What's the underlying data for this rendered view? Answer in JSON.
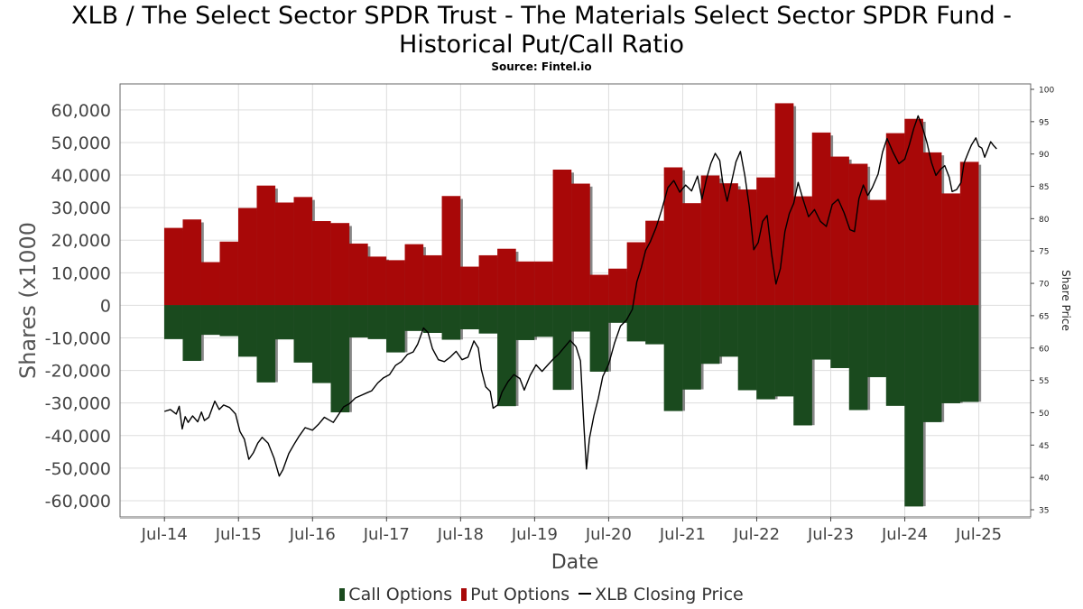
{
  "chart_data": {
    "type": "bar",
    "title_line1": "XLB / The Select Sector SPDR Trust - The Materials Select Sector SPDR Fund -",
    "title_line2": "Historical Put/Call Ratio",
    "subtitle": "Source: Fintel.io",
    "xlabel": "Date",
    "ylabel": "Shares (x1000",
    "y2label": "Share Price",
    "ylim": [
      -65000,
      68000
    ],
    "y2lim": [
      35,
      100
    ],
    "yticks": [
      "60,000",
      "50,000",
      "40,000",
      "30,000",
      "20,000",
      "10,000",
      "0",
      "-10,000",
      "-20,000",
      "-30,000",
      "-40,000",
      "-50,000",
      "-60,000"
    ],
    "ytick_values": [
      60000,
      50000,
      40000,
      30000,
      20000,
      10000,
      0,
      -10000,
      -20000,
      -30000,
      -40000,
      -50000,
      -60000
    ],
    "y2ticks": [
      "100",
      "95",
      "90",
      "85",
      "80",
      "75",
      "70",
      "65",
      "60",
      "55",
      "50",
      "45",
      "40",
      "35"
    ],
    "y2tick_values": [
      100,
      95,
      90,
      85,
      80,
      75,
      70,
      65,
      60,
      55,
      50,
      45,
      40,
      35
    ],
    "xticks": [
      "Jul-14",
      "Jul-15",
      "Jul-16",
      "Jul-17",
      "Jul-18",
      "Jul-19",
      "Jul-20",
      "Jul-21",
      "Jul-22",
      "Jul-23",
      "Jul-24",
      "Jul-25"
    ],
    "xtick_values": [
      2014.5,
      2015.5,
      2016.5,
      2017.5,
      2018.5,
      2019.5,
      2020.5,
      2021.5,
      2022.5,
      2023.5,
      2024.5,
      2025.5
    ],
    "xlim": [
      2013.9,
      2026.2
    ],
    "grid": true,
    "legend_position": "bottom",
    "bar_width_years": 0.245,
    "series": [
      {
        "name": "Call Options",
        "color": "#1a4a1e",
        "points": [
          [
            2014.5,
            -10300
          ],
          [
            2014.75,
            -17000
          ],
          [
            2015.0,
            -9000
          ],
          [
            2015.25,
            -9400
          ],
          [
            2015.5,
            -15700
          ],
          [
            2015.75,
            -23600
          ],
          [
            2016.0,
            -10400
          ],
          [
            2016.25,
            -17500
          ],
          [
            2016.5,
            -23800
          ],
          [
            2016.75,
            -32800
          ],
          [
            2017.0,
            -9800
          ],
          [
            2017.25,
            -10300
          ],
          [
            2017.5,
            -14400
          ],
          [
            2017.75,
            -7800
          ],
          [
            2018.0,
            -8400
          ],
          [
            2018.25,
            -10500
          ],
          [
            2018.5,
            -7300
          ],
          [
            2018.75,
            -8600
          ],
          [
            2019.0,
            -30900
          ],
          [
            2019.25,
            -10600
          ],
          [
            2019.5,
            -9600
          ],
          [
            2019.75,
            -25900
          ],
          [
            2020.0,
            -8000
          ],
          [
            2020.25,
            -20300
          ],
          [
            2020.5,
            -5300
          ],
          [
            2020.75,
            -11000
          ],
          [
            2021.0,
            -11900
          ],
          [
            2021.25,
            -32400
          ],
          [
            2021.5,
            -25800
          ],
          [
            2021.75,
            -17900
          ],
          [
            2022.0,
            -15700
          ],
          [
            2022.25,
            -26000
          ],
          [
            2022.5,
            -28800
          ],
          [
            2022.75,
            -27900
          ],
          [
            2023.0,
            -36800
          ],
          [
            2023.25,
            -16600
          ],
          [
            2023.5,
            -19200
          ],
          [
            2023.75,
            -32100
          ],
          [
            2024.0,
            -22000
          ],
          [
            2024.25,
            -30800
          ],
          [
            2024.5,
            -61700
          ],
          [
            2024.75,
            -35800
          ],
          [
            2025.0,
            -30000
          ],
          [
            2025.25,
            -29600
          ]
        ]
      },
      {
        "name": "Put Options",
        "color": "#a80808",
        "points": [
          [
            2014.5,
            23700
          ],
          [
            2014.75,
            26300
          ],
          [
            2015.0,
            13200
          ],
          [
            2015.25,
            19500
          ],
          [
            2015.5,
            29800
          ],
          [
            2015.75,
            36700
          ],
          [
            2016.0,
            31500
          ],
          [
            2016.25,
            33200
          ],
          [
            2016.5,
            25800
          ],
          [
            2016.75,
            25200
          ],
          [
            2017.0,
            18900
          ],
          [
            2017.25,
            14900
          ],
          [
            2017.5,
            13800
          ],
          [
            2017.75,
            18700
          ],
          [
            2018.0,
            15300
          ],
          [
            2018.25,
            33500
          ],
          [
            2018.5,
            11800
          ],
          [
            2018.75,
            15300
          ],
          [
            2019.0,
            17300
          ],
          [
            2019.25,
            13400
          ],
          [
            2019.5,
            13400
          ],
          [
            2019.75,
            41600
          ],
          [
            2020.0,
            37300
          ],
          [
            2020.25,
            9300
          ],
          [
            2020.5,
            11200
          ],
          [
            2020.75,
            19300
          ],
          [
            2021.0,
            25900
          ],
          [
            2021.25,
            42300
          ],
          [
            2021.5,
            31300
          ],
          [
            2021.75,
            39800
          ],
          [
            2022.0,
            37400
          ],
          [
            2022.25,
            35500
          ],
          [
            2022.5,
            39200
          ],
          [
            2022.75,
            62000
          ],
          [
            2023.0,
            33400
          ],
          [
            2023.25,
            53000
          ],
          [
            2023.5,
            45600
          ],
          [
            2023.75,
            43400
          ],
          [
            2024.0,
            32300
          ],
          [
            2024.25,
            52800
          ],
          [
            2024.5,
            57200
          ],
          [
            2024.75,
            46900
          ],
          [
            2025.0,
            34300
          ],
          [
            2025.25,
            44000
          ]
        ]
      },
      {
        "name": "XLB Closing Price",
        "color": "#000000",
        "type": "line",
        "axis": "right",
        "points": [
          [
            2014.5,
            50.2
          ],
          [
            2014.58,
            50.5
          ],
          [
            2014.66,
            49.8
          ],
          [
            2014.7,
            51.0
          ],
          [
            2014.74,
            47.5
          ],
          [
            2014.78,
            49.4
          ],
          [
            2014.82,
            48.5
          ],
          [
            2014.88,
            49.5
          ],
          [
            2014.95,
            48.6
          ],
          [
            2015.0,
            50.1
          ],
          [
            2015.04,
            48.8
          ],
          [
            2015.1,
            49.3
          ],
          [
            2015.18,
            51.8
          ],
          [
            2015.24,
            50.5
          ],
          [
            2015.3,
            51.2
          ],
          [
            2015.38,
            50.8
          ],
          [
            2015.46,
            49.8
          ],
          [
            2015.52,
            47.1
          ],
          [
            2015.58,
            45.9
          ],
          [
            2015.64,
            42.8
          ],
          [
            2015.7,
            43.8
          ],
          [
            2015.76,
            45.3
          ],
          [
            2015.82,
            46.2
          ],
          [
            2015.9,
            45.3
          ],
          [
            2015.98,
            43.0
          ],
          [
            2016.05,
            40.2
          ],
          [
            2016.1,
            41.2
          ],
          [
            2016.18,
            43.7
          ],
          [
            2016.26,
            45.3
          ],
          [
            2016.32,
            46.4
          ],
          [
            2016.4,
            47.7
          ],
          [
            2016.5,
            47.3
          ],
          [
            2016.58,
            48.2
          ],
          [
            2016.66,
            49.3
          ],
          [
            2016.72,
            48.9
          ],
          [
            2016.78,
            48.5
          ],
          [
            2016.85,
            49.7
          ],
          [
            2016.92,
            50.9
          ],
          [
            2017.0,
            51.4
          ],
          [
            2017.08,
            52.3
          ],
          [
            2017.16,
            52.7
          ],
          [
            2017.24,
            53.1
          ],
          [
            2017.3,
            53.4
          ],
          [
            2017.38,
            54.6
          ],
          [
            2017.46,
            55.4
          ],
          [
            2017.54,
            55.9
          ],
          [
            2017.62,
            57.3
          ],
          [
            2017.7,
            57.9
          ],
          [
            2017.78,
            59.0
          ],
          [
            2017.86,
            59.4
          ],
          [
            2017.92,
            60.6
          ],
          [
            2018.0,
            63.1
          ],
          [
            2018.06,
            62.4
          ],
          [
            2018.12,
            59.9
          ],
          [
            2018.2,
            58.2
          ],
          [
            2018.28,
            57.9
          ],
          [
            2018.36,
            58.6
          ],
          [
            2018.44,
            59.5
          ],
          [
            2018.52,
            58.2
          ],
          [
            2018.6,
            58.6
          ],
          [
            2018.68,
            61.1
          ],
          [
            2018.74,
            60.0
          ],
          [
            2018.78,
            56.7
          ],
          [
            2018.84,
            54.0
          ],
          [
            2018.9,
            53.3
          ],
          [
            2018.94,
            50.7
          ],
          [
            2019.0,
            51.2
          ],
          [
            2019.06,
            53.2
          ],
          [
            2019.14,
            54.8
          ],
          [
            2019.22,
            55.9
          ],
          [
            2019.3,
            55.3
          ],
          [
            2019.36,
            53.5
          ],
          [
            2019.44,
            55.8
          ],
          [
            2019.52,
            57.4
          ],
          [
            2019.6,
            56.4
          ],
          [
            2019.68,
            57.4
          ],
          [
            2019.76,
            58.4
          ],
          [
            2019.82,
            59.0
          ],
          [
            2019.9,
            60.1
          ],
          [
            2019.98,
            61.2
          ],
          [
            2020.06,
            60.2
          ],
          [
            2020.12,
            58.0
          ],
          [
            2020.16,
            49.2
          ],
          [
            2020.2,
            41.3
          ],
          [
            2020.24,
            46.0
          ],
          [
            2020.3,
            49.5
          ],
          [
            2020.36,
            52.2
          ],
          [
            2020.42,
            55.6
          ],
          [
            2020.5,
            57.5
          ],
          [
            2020.58,
            60.8
          ],
          [
            2020.66,
            63.4
          ],
          [
            2020.74,
            64.3
          ],
          [
            2020.82,
            66.0
          ],
          [
            2020.88,
            70.2
          ],
          [
            2020.94,
            72.4
          ],
          [
            2021.0,
            75.1
          ],
          [
            2021.06,
            76.4
          ],
          [
            2021.14,
            78.6
          ],
          [
            2021.22,
            81.5
          ],
          [
            2021.3,
            84.8
          ],
          [
            2021.38,
            85.9
          ],
          [
            2021.46,
            84.1
          ],
          [
            2021.54,
            85.2
          ],
          [
            2021.62,
            84.3
          ],
          [
            2021.7,
            86.6
          ],
          [
            2021.76,
            83.0
          ],
          [
            2021.82,
            86.1
          ],
          [
            2021.88,
            88.5
          ],
          [
            2021.94,
            90.1
          ],
          [
            2022.0,
            89.0
          ],
          [
            2022.04,
            85.7
          ],
          [
            2022.1,
            82.7
          ],
          [
            2022.16,
            85.7
          ],
          [
            2022.22,
            88.8
          ],
          [
            2022.28,
            90.4
          ],
          [
            2022.34,
            86.6
          ],
          [
            2022.4,
            81.8
          ],
          [
            2022.46,
            75.2
          ],
          [
            2022.52,
            76.3
          ],
          [
            2022.58,
            79.6
          ],
          [
            2022.64,
            80.5
          ],
          [
            2022.7,
            74.6
          ],
          [
            2022.76,
            69.9
          ],
          [
            2022.82,
            72.3
          ],
          [
            2022.88,
            78.0
          ],
          [
            2022.94,
            80.8
          ],
          [
            2023.0,
            82.4
          ],
          [
            2023.06,
            85.6
          ],
          [
            2023.12,
            83.2
          ],
          [
            2023.2,
            80.3
          ],
          [
            2023.28,
            81.4
          ],
          [
            2023.36,
            79.6
          ],
          [
            2023.44,
            78.8
          ],
          [
            2023.52,
            82.2
          ],
          [
            2023.6,
            83.0
          ],
          [
            2023.68,
            80.9
          ],
          [
            2023.76,
            78.3
          ],
          [
            2023.82,
            78.0
          ],
          [
            2023.88,
            83.1
          ],
          [
            2023.94,
            85.2
          ],
          [
            2024.0,
            83.6
          ],
          [
            2024.06,
            84.8
          ],
          [
            2024.14,
            86.9
          ],
          [
            2024.2,
            90.3
          ],
          [
            2024.26,
            92.4
          ],
          [
            2024.34,
            90.3
          ],
          [
            2024.42,
            88.5
          ],
          [
            2024.5,
            89.2
          ],
          [
            2024.56,
            91.4
          ],
          [
            2024.62,
            93.9
          ],
          [
            2024.68,
            95.9
          ],
          [
            2024.74,
            94.1
          ],
          [
            2024.8,
            91.7
          ],
          [
            2024.86,
            88.7
          ],
          [
            2024.92,
            86.7
          ],
          [
            2024.98,
            87.6
          ],
          [
            2025.04,
            88.2
          ],
          [
            2025.1,
            86.4
          ],
          [
            2025.14,
            84.2
          ],
          [
            2025.2,
            84.5
          ],
          [
            2025.26,
            85.6
          ],
          [
            2025.3,
            88.6
          ],
          [
            2025.36,
            90.3
          ],
          [
            2025.4,
            91.4
          ],
          [
            2025.46,
            92.5
          ],
          [
            2025.5,
            91.2
          ],
          [
            2025.54,
            90.9
          ],
          [
            2025.58,
            89.5
          ],
          [
            2025.62,
            90.7
          ],
          [
            2025.66,
            91.9
          ],
          [
            2025.7,
            91.3
          ],
          [
            2025.74,
            90.8
          ]
        ]
      }
    ],
    "legend": [
      {
        "label": "Call Options",
        "color": "#1a4a1e",
        "kind": "bar"
      },
      {
        "label": "Put Options",
        "color": "#a80808",
        "kind": "bar"
      },
      {
        "label": "XLB Closing Price",
        "color": "#000000",
        "kind": "line"
      }
    ]
  }
}
